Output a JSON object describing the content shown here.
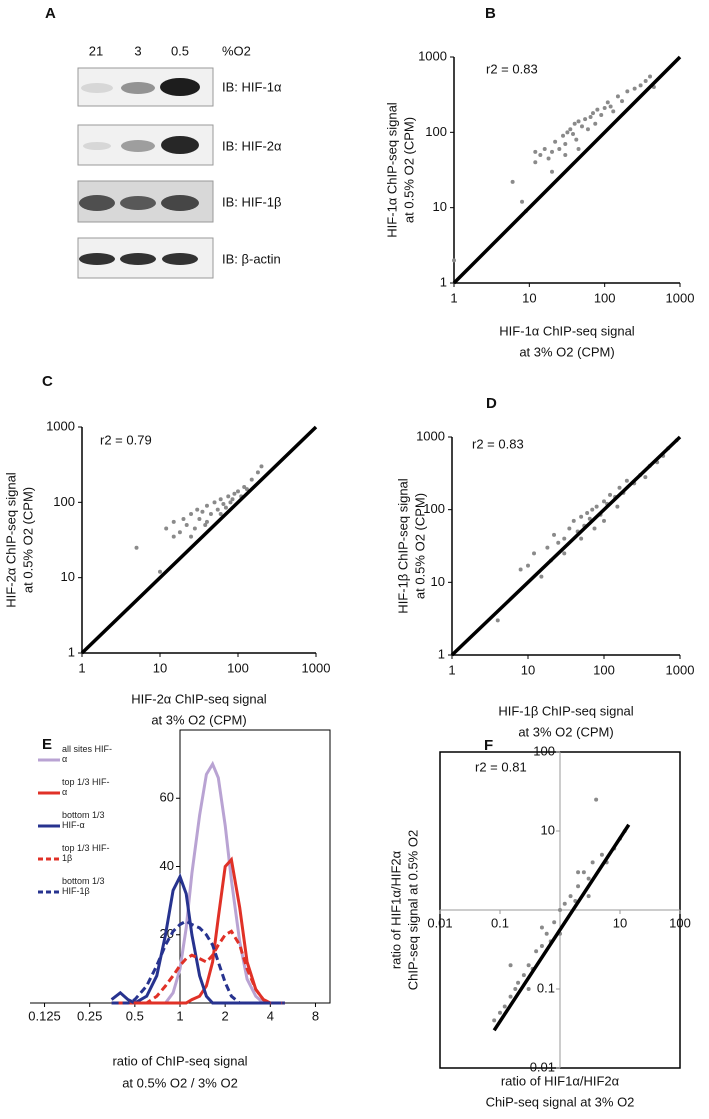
{
  "blot": {
    "label": "A",
    "lanes_title": "%O2",
    "lanes": [
      "21",
      "3",
      "0.5"
    ],
    "rows": [
      "IB: HIF-1α",
      "IB: HIF-2α",
      "IB: HIF-1β",
      "IB: β-actin"
    ]
  },
  "chart_data": [
    {
      "type": "scatter",
      "label": "B",
      "annotation": "r2 = 0.83",
      "log": true,
      "frame": "axes",
      "identity_line": true,
      "color": "#8a8a8a",
      "xlabel": [
        "HIF-1α ChIP-seq signal",
        "at 3% O2 (CPM)"
      ],
      "ylabel": [
        "HIF-1α ChIP-seq signal",
        "at 0.5% O2 (CPM)"
      ],
      "xlim": [
        1,
        1000
      ],
      "ylim": [
        1,
        1000
      ],
      "xticks": [
        1,
        10,
        100,
        1000
      ],
      "yticks": [
        1,
        10,
        100,
        1000
      ],
      "x": [
        1,
        6,
        8,
        9,
        12,
        14,
        16,
        18,
        20,
        22,
        25,
        28,
        30,
        32,
        35,
        38,
        40,
        42,
        45,
        50,
        55,
        60,
        65,
        70,
        75,
        80,
        90,
        100,
        110,
        120,
        130,
        150,
        170,
        200,
        250,
        300,
        350,
        400,
        450,
        12,
        20,
        30,
        45
      ],
      "values": [
        2,
        22,
        12,
        9,
        55,
        50,
        60,
        45,
        55,
        75,
        60,
        90,
        70,
        100,
        110,
        95,
        130,
        80,
        140,
        120,
        150,
        110,
        160,
        180,
        130,
        200,
        170,
        210,
        250,
        220,
        190,
        300,
        260,
        350,
        380,
        420,
        480,
        550,
        400,
        40,
        30,
        50,
        60
      ]
    },
    {
      "type": "scatter",
      "label": "C",
      "annotation": "r2 = 0.79",
      "log": true,
      "frame": "axes",
      "identity_line": true,
      "color": "#8a8a8a",
      "xlabel": [
        "HIF-2α ChIP-seq signal",
        "at 3% O2 (CPM)"
      ],
      "ylabel": [
        "HIF-2α ChIP-seq signal",
        "at 0.5% O2 (CPM)"
      ],
      "xlim": [
        1,
        1000
      ],
      "ylim": [
        1,
        1000
      ],
      "xticks": [
        1,
        10,
        100,
        1000
      ],
      "yticks": [
        1,
        10,
        100,
        1000
      ],
      "x": [
        5,
        10,
        12,
        15,
        18,
        20,
        22,
        25,
        28,
        30,
        32,
        35,
        38,
        40,
        45,
        50,
        55,
        60,
        65,
        70,
        75,
        80,
        90,
        100,
        110,
        120,
        130,
        150,
        180,
        200,
        15,
        25,
        40,
        60,
        85
      ],
      "values": [
        25,
        12,
        45,
        55,
        40,
        60,
        50,
        70,
        45,
        80,
        60,
        75,
        50,
        90,
        70,
        100,
        80,
        110,
        95,
        85,
        120,
        100,
        130,
        140,
        120,
        160,
        150,
        200,
        250,
        300,
        35,
        35,
        55,
        70,
        110
      ]
    },
    {
      "type": "scatter",
      "label": "D",
      "annotation": "r2 = 0.83",
      "log": true,
      "frame": "axes",
      "identity_line": true,
      "color": "#8a8a8a",
      "xlabel": [
        "HIF-1β ChIP-seq signal",
        "at 3% O2 (CPM)"
      ],
      "ylabel": [
        "HIF-1β ChIP-seq signal",
        "at 0.5% O2 (CPM)"
      ],
      "xlim": [
        1,
        1000
      ],
      "ylim": [
        1,
        1000
      ],
      "xticks": [
        1,
        10,
        100,
        1000
      ],
      "yticks": [
        1,
        10,
        100,
        1000
      ],
      "x": [
        4,
        8,
        10,
        12,
        15,
        18,
        20,
        22,
        25,
        30,
        35,
        40,
        45,
        50,
        55,
        60,
        65,
        70,
        80,
        90,
        100,
        110,
        120,
        140,
        160,
        180,
        200,
        250,
        300,
        350,
        400,
        500,
        600,
        700,
        900,
        30,
        50,
        75,
        100,
        150
      ],
      "values": [
        3,
        15,
        17,
        25,
        12,
        30,
        20,
        45,
        35,
        40,
        55,
        70,
        50,
        80,
        60,
        90,
        75,
        100,
        110,
        85,
        130,
        120,
        160,
        150,
        200,
        170,
        250,
        230,
        300,
        280,
        400,
        450,
        550,
        700,
        900,
        25,
        40,
        55,
        70,
        110
      ]
    },
    {
      "type": "line",
      "label": "E",
      "log_x": true,
      "cross_at": 1,
      "xlabel": [
        "ratio of ChIP-seq signal",
        "at 0.5% O2 / 3% O2"
      ],
      "xlim": [
        0.1,
        10
      ],
      "ylim": [
        0,
        80
      ],
      "xticks": [
        0.125,
        0.25,
        0.5,
        1,
        2,
        4,
        8
      ],
      "yticks": [
        20,
        40,
        60
      ],
      "x": [
        0.35,
        0.4,
        0.45,
        0.5,
        0.6,
        0.7,
        0.8,
        0.9,
        1,
        1.1,
        1.2,
        1.35,
        1.5,
        1.65,
        1.8,
        2,
        2.2,
        2.5,
        2.8,
        3.2,
        3.6,
        4,
        5
      ],
      "series": [
        {
          "name": "all sites HIF-α",
          "color": "#b9a3d3",
          "dashed": false,
          "values": [
            0,
            0,
            0,
            0,
            0,
            0,
            0,
            3,
            10,
            22,
            38,
            55,
            67,
            70,
            66,
            52,
            36,
            18,
            7,
            2,
            0,
            0,
            0
          ]
        },
        {
          "name": "top 1/3 HIF-α",
          "color": "#e03127",
          "dashed": false,
          "values": [
            0,
            0,
            0,
            0,
            0,
            0,
            0,
            0,
            0,
            0,
            1,
            2,
            5,
            12,
            25,
            40,
            42,
            28,
            12,
            4,
            1,
            0,
            0
          ]
        },
        {
          "name": "bottom 1/3 HIF-α",
          "color": "#27338f",
          "dashed": false,
          "values": [
            1,
            3,
            1,
            0,
            2,
            8,
            20,
            33,
            37,
            32,
            20,
            8,
            2,
            0,
            0,
            0,
            0,
            0,
            0,
            0,
            0,
            0,
            0
          ]
        },
        {
          "name": "top 1/3 HIF-1β",
          "color": "#e03127",
          "dashed": true,
          "values": [
            0,
            0,
            0,
            0,
            0,
            2,
            5,
            8,
            11,
            13,
            14,
            13,
            12,
            14,
            17,
            20,
            21,
            17,
            10,
            4,
            1,
            0,
            0
          ]
        },
        {
          "name": "bottom 1/3 HIF-1β",
          "color": "#27338f",
          "dashed": true,
          "values": [
            0,
            0,
            0,
            1,
            5,
            11,
            17,
            21,
            23,
            24,
            23,
            22,
            20,
            17,
            12,
            6,
            2,
            0,
            0,
            0,
            0,
            0,
            0
          ]
        }
      ]
    },
    {
      "type": "scatter",
      "label": "F",
      "annotation": "r2 = 0.81",
      "log": true,
      "frame": "box",
      "cross_at": 1,
      "color": "#8a8a8a",
      "xlabel": [
        "ratio of HIF1α/HIF2α",
        "ChiP-seq signal at 3% O2"
      ],
      "ylabel": [
        "ratio of HIF1α/HIF2α",
        "ChIP-seq signal at 0.5% O2"
      ],
      "xlim": [
        0.01,
        100
      ],
      "ylim": [
        0.01,
        100
      ],
      "xticks": [
        0.01,
        0.1,
        10,
        100
      ],
      "yticks": [
        0.01,
        0.1,
        10,
        100
      ],
      "fit_line": {
        "x": [
          0.08,
          14
        ],
        "y": [
          0.03,
          12
        ]
      },
      "x": [
        0.08,
        0.1,
        0.12,
        0.15,
        0.18,
        0.2,
        0.25,
        0.3,
        0.35,
        0.4,
        0.5,
        0.6,
        0.7,
        0.8,
        1,
        1.2,
        1.5,
        1.8,
        2,
        2.5,
        3,
        3.5,
        4,
        5,
        6,
        8,
        10,
        12,
        0.15,
        0.3,
        0.5,
        1,
        2,
        3
      ],
      "values": [
        0.04,
        0.05,
        0.06,
        0.08,
        0.1,
        0.12,
        0.15,
        0.2,
        0.18,
        0.3,
        0.35,
        0.5,
        0.4,
        0.7,
        1,
        1.2,
        1.5,
        1.3,
        2,
        3,
        2.5,
        4,
        25,
        5,
        4,
        6,
        8,
        10,
        0.2,
        0.1,
        0.6,
        0.5,
        3,
        1.5
      ]
    }
  ]
}
